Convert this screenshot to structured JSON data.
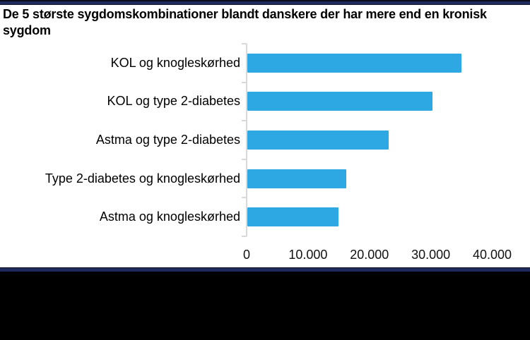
{
  "chart_data": {
    "type": "bar",
    "orientation": "horizontal",
    "title": "De 5 største sygdomskombinationer blandt danskere der har mere end en kronisk sygdom",
    "categories": [
      "KOL og knogleskørhed",
      "KOL og type 2-diabetes",
      "Astma og type 2-diabetes",
      "Type 2-diabetes og knogleskørhed",
      "Astma og knogleskørhed"
    ],
    "values": [
      34900,
      30200,
      23000,
      16100,
      14900
    ],
    "xlim": [
      0,
      45000
    ],
    "x_tick_values": [
      0,
      10000,
      20000,
      30000,
      40000
    ],
    "x_tick_labels": [
      "0",
      "10.000",
      "20.000",
      "30.000",
      "40.000"
    ],
    "xlabel": "",
    "ylabel": "",
    "gridlines": false,
    "legend": false,
    "bar_color": "#2da8e2",
    "axis_color": "#d9d9d9",
    "border_navy_color": "#1f2a5c",
    "footer_color": "#000000"
  }
}
